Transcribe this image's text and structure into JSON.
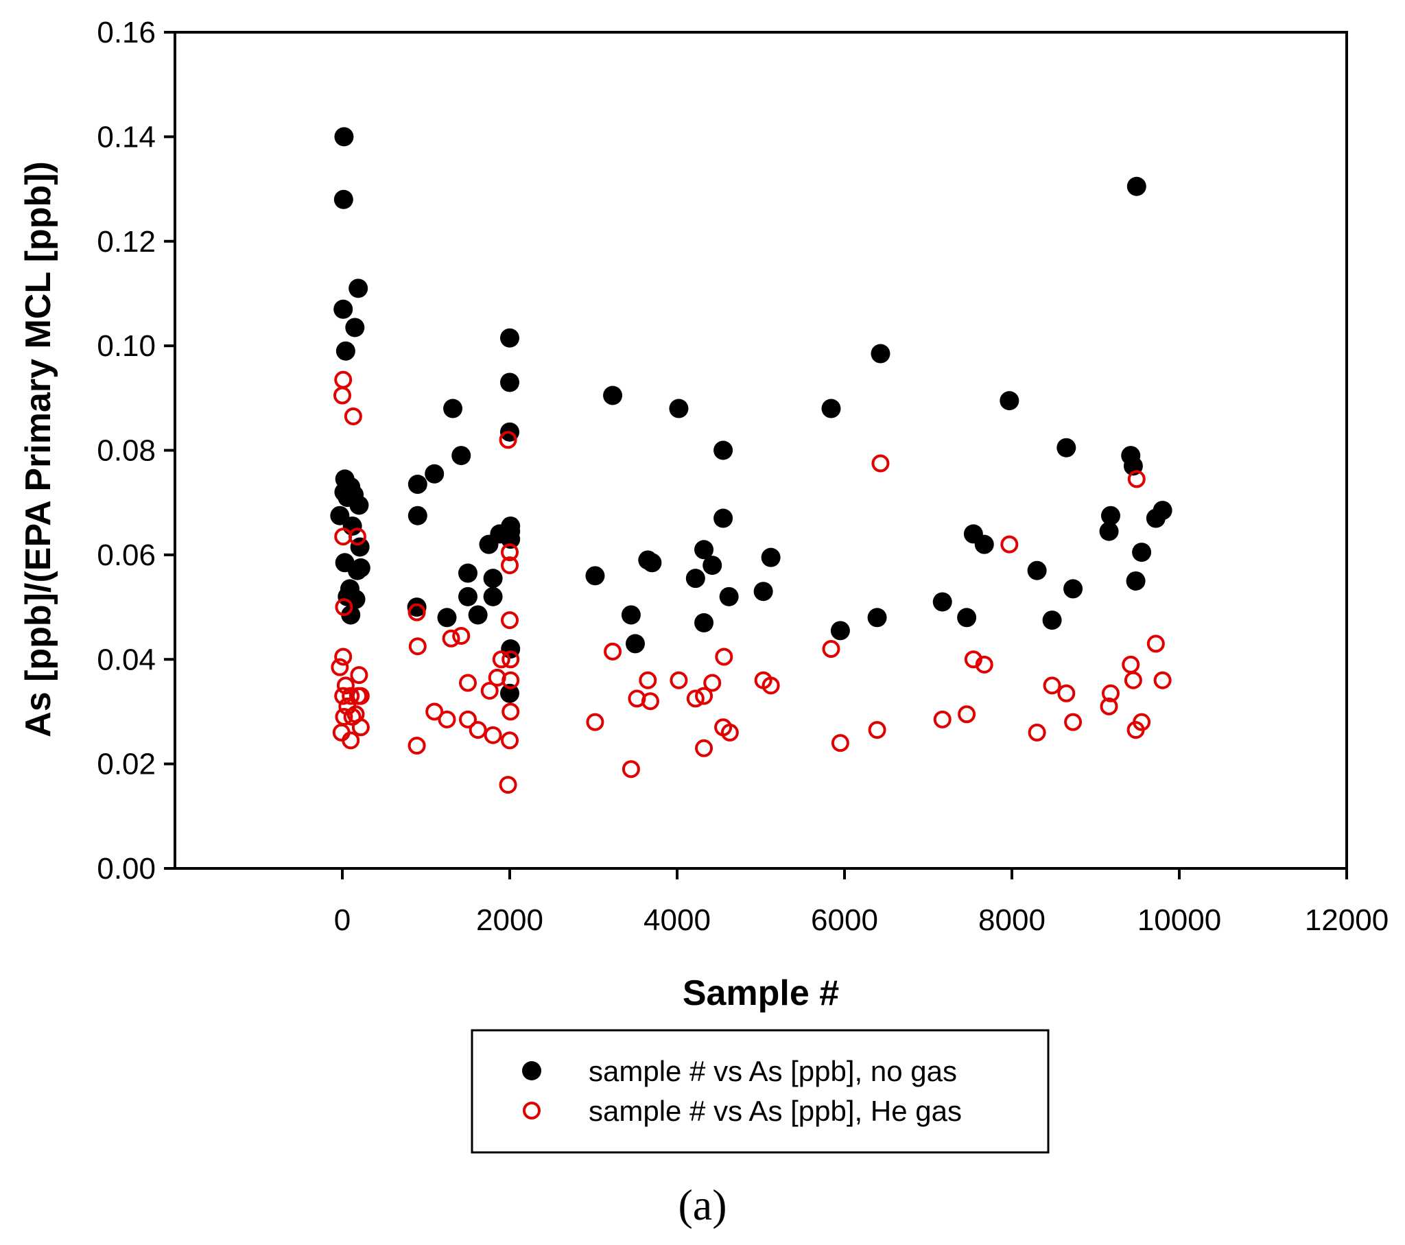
{
  "chart_data": {
    "type": "scatter",
    "title": "",
    "xlabel": "Sample #",
    "ylabel": "As [ppb]/(EPA Primary MCL [ppb])",
    "xlim": [
      -2000,
      12000
    ],
    "ylim": [
      0,
      0.16
    ],
    "x_ticks": [
      "0",
      "2000",
      "4000",
      "6000",
      "8000",
      "10000",
      "12000"
    ],
    "y_ticks": [
      "0.00",
      "0.02",
      "0.04",
      "0.06",
      "0.08",
      "0.10",
      "0.12",
      "0.14",
      "0.16"
    ],
    "grid": false,
    "legend_position": "bottom-center",
    "panel_label": "(a)",
    "series": [
      {
        "name": "sample # vs As [ppb], no gas",
        "marker": "filled-circle",
        "color": "#000000",
        "points": [
          [
            20,
            0.14
          ],
          [
            15,
            0.128
          ],
          [
            10,
            0.107
          ],
          [
            190,
            0.111
          ],
          [
            150,
            0.1035
          ],
          [
            40,
            0.099
          ],
          [
            -30,
            0.0675
          ],
          [
            30,
            0.0745
          ],
          [
            20,
            0.072
          ],
          [
            60,
            0.071
          ],
          [
            100,
            0.073
          ],
          [
            140,
            0.0715
          ],
          [
            200,
            0.0695
          ],
          [
            120,
            0.0655
          ],
          [
            30,
            0.0585
          ],
          [
            210,
            0.0615
          ],
          [
            220,
            0.0575
          ],
          [
            180,
            0.057
          ],
          [
            60,
            0.052
          ],
          [
            90,
            0.0535
          ],
          [
            130,
            0.0515
          ],
          [
            160,
            0.0515
          ],
          [
            100,
            0.0485
          ],
          [
            900,
            0.0735
          ],
          [
            900,
            0.0675
          ],
          [
            890,
            0.05
          ],
          [
            1100,
            0.0755
          ],
          [
            1320,
            0.088
          ],
          [
            1420,
            0.079
          ],
          [
            1250,
            0.048
          ],
          [
            1500,
            0.0565
          ],
          [
            1500,
            0.052
          ],
          [
            1620,
            0.0485
          ],
          [
            1750,
            0.062
          ],
          [
            1800,
            0.0555
          ],
          [
            1800,
            0.052
          ],
          [
            1880,
            0.064
          ],
          [
            2000,
            0.1015
          ],
          [
            2000,
            0.093
          ],
          [
            2000,
            0.0835
          ],
          [
            2010,
            0.0655
          ],
          [
            2010,
            0.063
          ],
          [
            2010,
            0.0645
          ],
          [
            2010,
            0.042
          ],
          [
            2000,
            0.0335
          ],
          [
            3020,
            0.056
          ],
          [
            3230,
            0.0905
          ],
          [
            3450,
            0.0485
          ],
          [
            3500,
            0.043
          ],
          [
            3650,
            0.059
          ],
          [
            3700,
            0.0585
          ],
          [
            4020,
            0.088
          ],
          [
            4220,
            0.0555
          ],
          [
            4320,
            0.061
          ],
          [
            4320,
            0.047
          ],
          [
            4420,
            0.058
          ],
          [
            4550,
            0.08
          ],
          [
            4550,
            0.067
          ],
          [
            4620,
            0.052
          ],
          [
            5030,
            0.053
          ],
          [
            5120,
            0.0595
          ],
          [
            5840,
            0.088
          ],
          [
            5950,
            0.0455
          ],
          [
            6390,
            0.048
          ],
          [
            6430,
            0.0985
          ],
          [
            7170,
            0.051
          ],
          [
            7460,
            0.048
          ],
          [
            7540,
            0.064
          ],
          [
            7670,
            0.062
          ],
          [
            7970,
            0.0895
          ],
          [
            8300,
            0.057
          ],
          [
            8480,
            0.0475
          ],
          [
            8650,
            0.0805
          ],
          [
            8730,
            0.0535
          ],
          [
            9160,
            0.0645
          ],
          [
            9180,
            0.0675
          ],
          [
            9420,
            0.079
          ],
          [
            9450,
            0.077
          ],
          [
            9480,
            0.055
          ],
          [
            9490,
            0.1305
          ],
          [
            9550,
            0.0605
          ],
          [
            9720,
            0.067
          ],
          [
            9800,
            0.0685
          ]
        ]
      },
      {
        "name": "sample # vs As [ppb], He gas",
        "marker": "open-circle",
        "color": "#e00000",
        "points": [
          [
            10,
            0.0935
          ],
          [
            0,
            0.0905
          ],
          [
            130,
            0.0865
          ],
          [
            10,
            0.0635
          ],
          [
            180,
            0.0635
          ],
          [
            20,
            0.05
          ],
          [
            10,
            0.0405
          ],
          [
            -30,
            0.0385
          ],
          [
            40,
            0.035
          ],
          [
            200,
            0.037
          ],
          [
            10,
            0.033
          ],
          [
            100,
            0.033
          ],
          [
            190,
            0.033
          ],
          [
            220,
            0.033
          ],
          [
            20,
            0.029
          ],
          [
            120,
            0.029
          ],
          [
            60,
            0.031
          ],
          [
            160,
            0.0295
          ],
          [
            -10,
            0.026
          ],
          [
            100,
            0.0245
          ],
          [
            220,
            0.027
          ],
          [
            890,
            0.049
          ],
          [
            900,
            0.0425
          ],
          [
            890,
            0.0235
          ],
          [
            1100,
            0.03
          ],
          [
            1250,
            0.0285
          ],
          [
            1300,
            0.044
          ],
          [
            1420,
            0.0445
          ],
          [
            1500,
            0.0355
          ],
          [
            1500,
            0.0285
          ],
          [
            1620,
            0.0265
          ],
          [
            1760,
            0.034
          ],
          [
            1800,
            0.0255
          ],
          [
            1850,
            0.0365
          ],
          [
            1900,
            0.04
          ],
          [
            1980,
            0.082
          ],
          [
            2000,
            0.0605
          ],
          [
            2000,
            0.058
          ],
          [
            2000,
            0.0475
          ],
          [
            2010,
            0.04
          ],
          [
            2010,
            0.036
          ],
          [
            2010,
            0.03
          ],
          [
            2000,
            0.0245
          ],
          [
            1980,
            0.016
          ],
          [
            3020,
            0.028
          ],
          [
            3230,
            0.0415
          ],
          [
            3450,
            0.019
          ],
          [
            3520,
            0.0325
          ],
          [
            3650,
            0.036
          ],
          [
            3680,
            0.032
          ],
          [
            4020,
            0.036
          ],
          [
            4220,
            0.0325
          ],
          [
            4320,
            0.033
          ],
          [
            4320,
            0.023
          ],
          [
            4420,
            0.0355
          ],
          [
            4560,
            0.0405
          ],
          [
            4550,
            0.027
          ],
          [
            4630,
            0.026
          ],
          [
            5030,
            0.036
          ],
          [
            5120,
            0.035
          ],
          [
            5840,
            0.042
          ],
          [
            5950,
            0.024
          ],
          [
            6390,
            0.0265
          ],
          [
            6430,
            0.0775
          ],
          [
            7170,
            0.0285
          ],
          [
            7460,
            0.0295
          ],
          [
            7540,
            0.04
          ],
          [
            7670,
            0.039
          ],
          [
            7970,
            0.062
          ],
          [
            8300,
            0.026
          ],
          [
            8480,
            0.035
          ],
          [
            8650,
            0.0335
          ],
          [
            8730,
            0.028
          ],
          [
            9160,
            0.031
          ],
          [
            9180,
            0.0335
          ],
          [
            9420,
            0.039
          ],
          [
            9450,
            0.036
          ],
          [
            9480,
            0.0265
          ],
          [
            9490,
            0.0745
          ],
          [
            9550,
            0.028
          ],
          [
            9720,
            0.043
          ],
          [
            9800,
            0.036
          ]
        ]
      }
    ]
  }
}
